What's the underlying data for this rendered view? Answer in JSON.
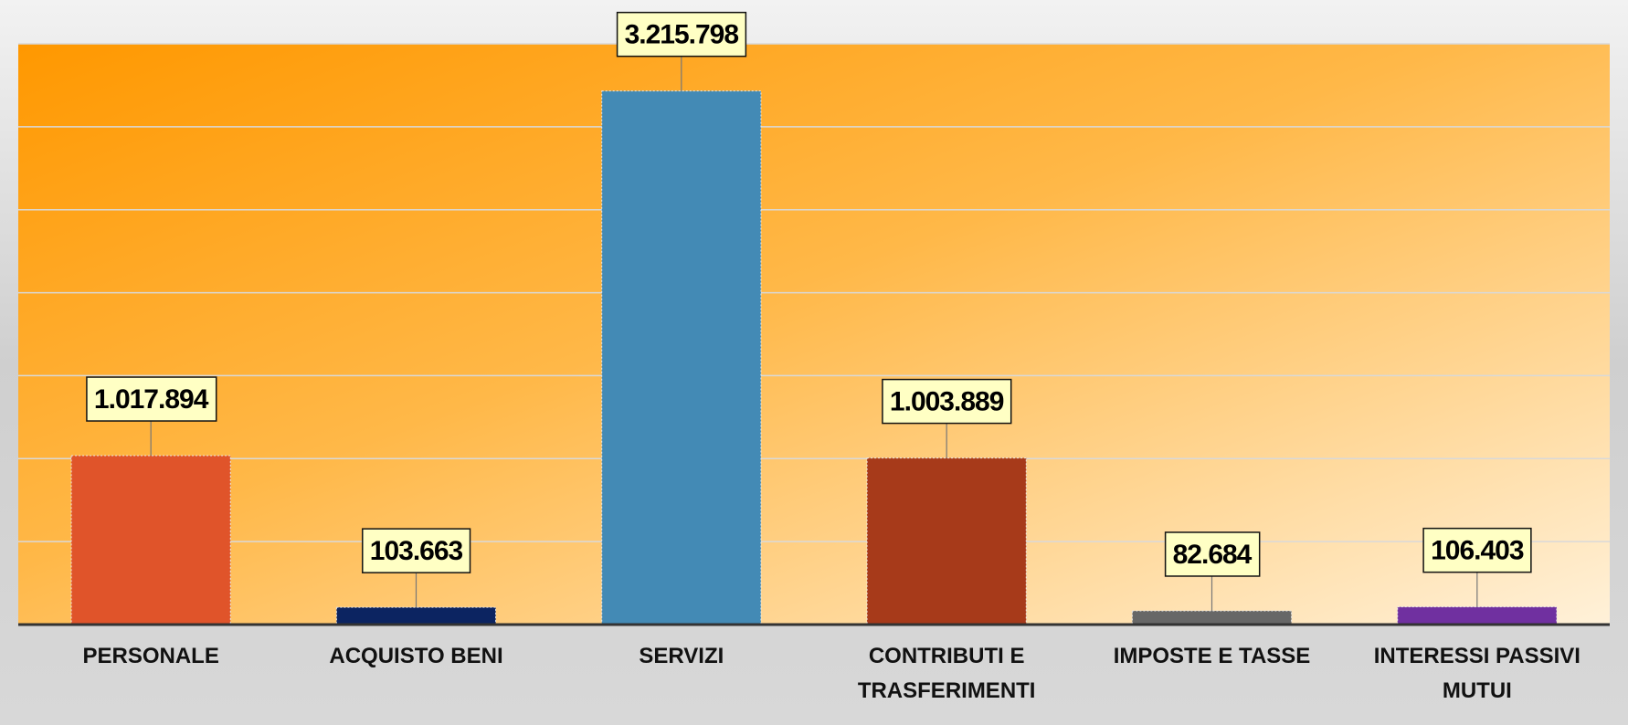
{
  "chart_data": {
    "type": "bar",
    "categories": [
      "PERSONALE",
      "ACQUISTO BENI",
      "SERVIZI",
      "CONTRIBUTI E TRASFERIMENTI",
      "IMPOSTE E TASSE",
      "INTERESSI PASSIVI MUTUI"
    ],
    "values": [
      1017894,
      103663,
      3215798,
      1003889,
      82684,
      106403
    ],
    "value_labels": [
      "1.017.894",
      "103.663",
      "3.215.798",
      "1.003.889",
      "82.684",
      "106.403"
    ],
    "colors": [
      "#e0542a",
      "#0c2461",
      "#438ab5",
      "#a73a1a",
      "#676767",
      "#7030a0"
    ],
    "ylim": [
      0,
      3500000
    ],
    "yticks": [
      0,
      500000,
      1000000,
      1500000,
      2000000,
      2500000,
      3000000,
      3500000
    ],
    "grid": true
  }
}
